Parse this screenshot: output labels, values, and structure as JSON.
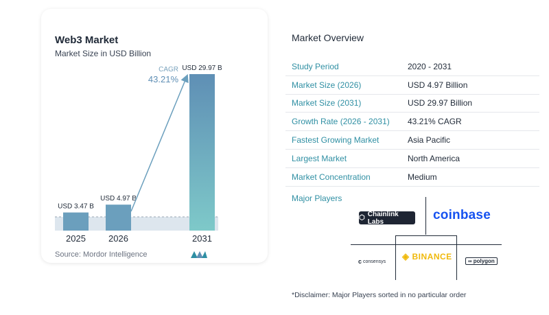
{
  "chart_title": "Web3 Market",
  "chart_subtitle": "Market Size in USD Billion",
  "source": "Source: Mordor Intelligence",
  "cagr_label": "CAGR",
  "cagr_value": "43.21%",
  "chart_data": {
    "type": "bar",
    "title": "Web3 Market",
    "subtitle": "Market Size in USD Billion",
    "categories": [
      "2025",
      "2026",
      "2031"
    ],
    "values": [
      3.47,
      4.97,
      29.97
    ],
    "data_labels": [
      "USD 3.47 B",
      "USD 4.97 B",
      "USD 29.97 B"
    ],
    "ylim": [
      0,
      30
    ],
    "annotation": {
      "label": "CAGR",
      "value": "43.21%",
      "from": "2026",
      "to": "2031"
    },
    "colors": {
      "bar_small": "#6b9fbd",
      "bar_large_top": "#5f8fb5",
      "bar_large_bottom": "#7ec9c9",
      "arrow": "#6b9fbd",
      "highlight_band": "#dde6ee"
    },
    "grid": false
  },
  "overview": {
    "title": "Market Overview",
    "rows": [
      {
        "label": "Study Period",
        "value": "2020 - 2031"
      },
      {
        "label": "Market Size (2026)",
        "value": "USD 4.97 Billion"
      },
      {
        "label": "Market Size (2031)",
        "value": "USD 29.97 Billion"
      },
      {
        "label": "Growth Rate (2026 - 2031)",
        "value": "43.21% CAGR"
      },
      {
        "label": "Fastest Growing Market",
        "value": "Asia Pacific"
      },
      {
        "label": "Largest Market",
        "value": "North America"
      },
      {
        "label": "Market Concentration",
        "value": "Medium"
      }
    ]
  },
  "major_players": {
    "title": "Major Players",
    "logos": [
      "Chainlink Labs",
      "coinbase",
      "consensys",
      "BINANCE",
      "polygon"
    ]
  },
  "disclaimer": "*Disclaimer: Major Players sorted in no particular order"
}
